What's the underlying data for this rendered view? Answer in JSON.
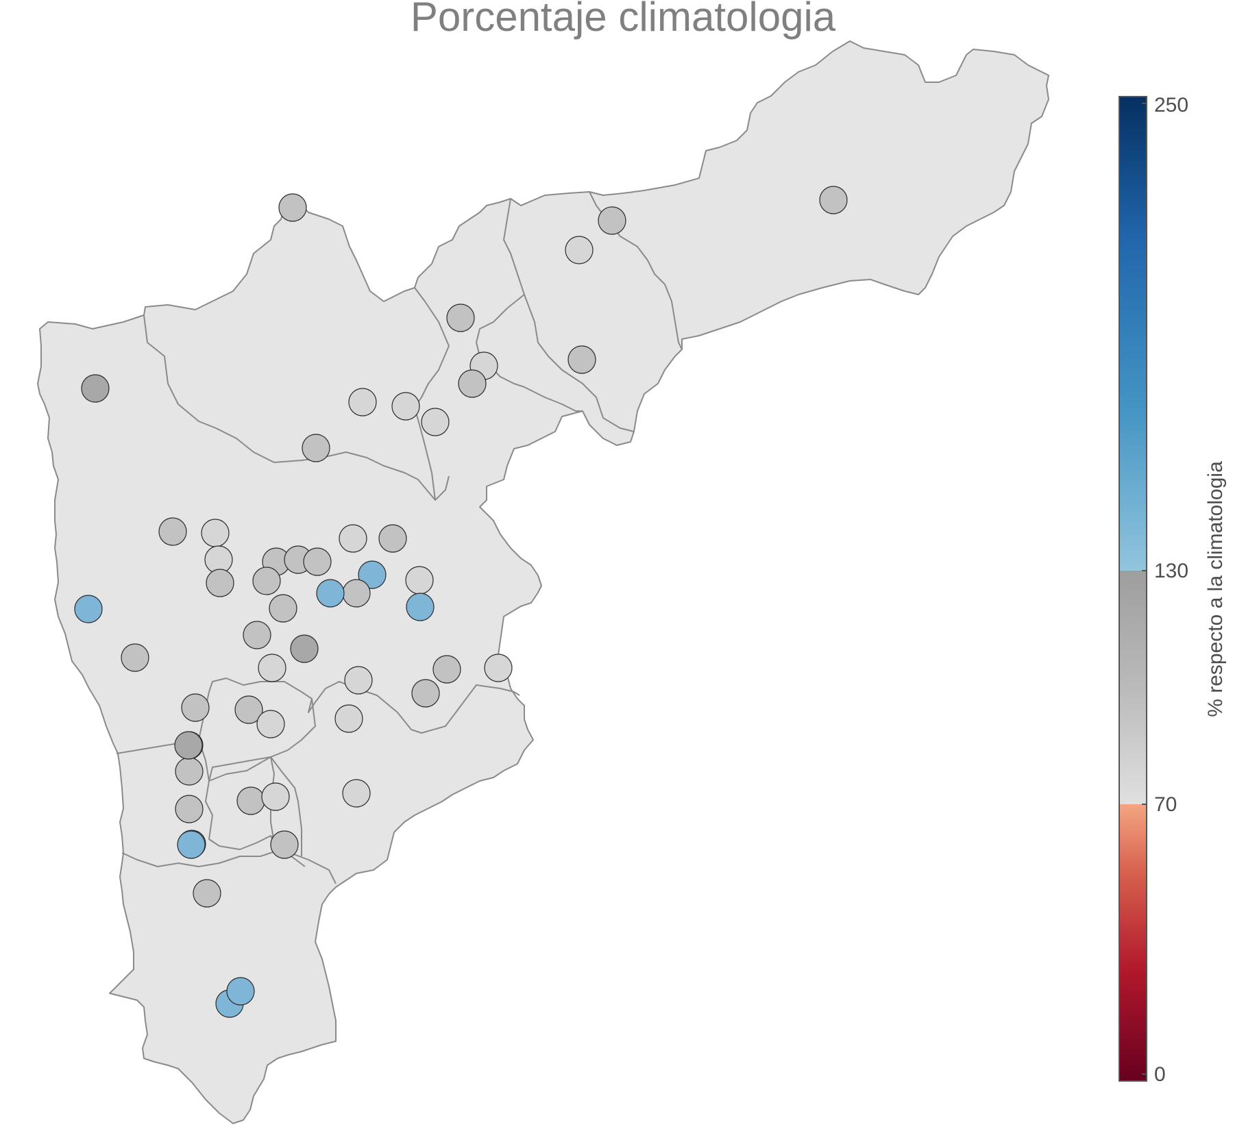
{
  "title": "Porcentaje climatologia",
  "legend": {
    "label": "% respecto a la climatologia",
    "ticks": [
      "0",
      "70",
      "130",
      "250"
    ],
    "min": 0,
    "max": 250,
    "breaks": [
      {
        "from": 0,
        "to": 70,
        "stops": [
          "#67001f",
          "#b2182b",
          "#d6604d",
          "#f4a582"
        ]
      },
      {
        "from": 70,
        "to": 130,
        "stops": [
          "#e0e0e0",
          "#bababa",
          "#a0a0a0"
        ]
      },
      {
        "from": 130,
        "to": 250,
        "stops": [
          "#92c5de",
          "#4393c3",
          "#2166ac",
          "#053061"
        ]
      }
    ]
  },
  "colors": {
    "region_fill": "#e5e5e5",
    "region_stroke": "#8a8a8a",
    "station_blue": "#7fb6d8",
    "station_gray_light": "#d6d6d6",
    "station_gray_mid": "#c2c2c2",
    "station_gray_dark": "#a8a8a8"
  },
  "stations": [
    {
      "value": 101
    },
    {
      "value": 104
    },
    {
      "value": 108
    },
    {
      "value": 93
    },
    {
      "value": 112
    },
    {
      "value": 88
    },
    {
      "value": 106
    },
    {
      "value": 100
    },
    {
      "value": 90
    },
    {
      "value": 98
    },
    {
      "value": 92
    },
    {
      "value": 103
    },
    {
      "value": 118
    },
    {
      "value": 113
    },
    {
      "value": 95
    },
    {
      "value": 107
    },
    {
      "value": 87
    },
    {
      "value": 88
    },
    {
      "value": 112
    },
    {
      "value": 100
    },
    {
      "value": 108
    },
    {
      "value": 97
    },
    {
      "value": 103
    },
    {
      "value": 146
    },
    {
      "value": 108
    },
    {
      "value": 145
    },
    {
      "value": 145
    },
    {
      "value": 104
    },
    {
      "value": 101
    },
    {
      "value": 146
    },
    {
      "value": 101
    },
    {
      "value": 112
    },
    {
      "value": 117
    },
    {
      "value": 96
    },
    {
      "value": 92
    },
    {
      "value": 102
    },
    {
      "value": 99
    },
    {
      "value": 113
    },
    {
      "value": 107
    },
    {
      "value": 103
    },
    {
      "value": 95
    },
    {
      "value": 96
    },
    {
      "value": 101
    },
    {
      "value": 102
    },
    {
      "value": 125
    },
    {
      "value": 106
    },
    {
      "value": 100
    },
    {
      "value": 94
    },
    {
      "value": 98
    },
    {
      "value": 108
    },
    {
      "value": 99
    },
    {
      "value": 145
    },
    {
      "value": 105
    },
    {
      "value": 146
    },
    {
      "value": 148
    },
    {
      "value": 98
    },
    {
      "value": 109
    }
  ]
}
